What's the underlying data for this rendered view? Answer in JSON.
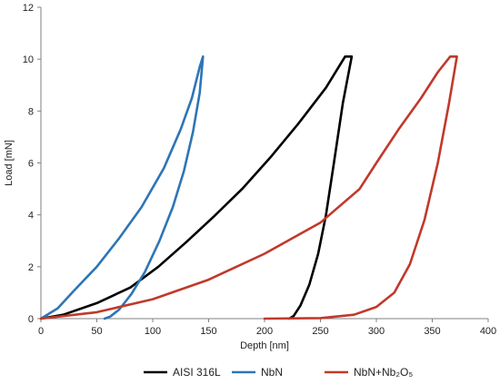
{
  "chart_data": {
    "type": "line",
    "xlabel": "Depth [nm]",
    "ylabel": "Load [mN]",
    "xlim": [
      0,
      400
    ],
    "ylim": [
      0,
      12
    ],
    "x_ticks": [
      "0",
      "50",
      "100",
      "150",
      "200",
      "250",
      "300",
      "350",
      "400"
    ],
    "y_ticks": [
      "0",
      "2",
      "4",
      "6",
      "8",
      "10",
      "12"
    ],
    "grid": false,
    "legend_position": "bottom",
    "series": [
      {
        "name": "AISI 316L",
        "color": "#000000",
        "points": [
          [
            0,
            0
          ],
          [
            20,
            0.15
          ],
          [
            50,
            0.6
          ],
          [
            80,
            1.2
          ],
          [
            105,
            2.0
          ],
          [
            130,
            2.95
          ],
          [
            155,
            3.95
          ],
          [
            180,
            5.0
          ],
          [
            205,
            6.2
          ],
          [
            230,
            7.5
          ],
          [
            255,
            8.9
          ],
          [
            272,
            10.1
          ],
          [
            278,
            10.1
          ],
          [
            270,
            8.3
          ],
          [
            262,
            6.0
          ],
          [
            255,
            4.0
          ],
          [
            248,
            2.5
          ],
          [
            240,
            1.3
          ],
          [
            232,
            0.5
          ],
          [
            226,
            0.1
          ],
          [
            222,
            0
          ]
        ]
      },
      {
        "name": "NbN",
        "color": "#2E75B6",
        "points": [
          [
            0,
            0
          ],
          [
            15,
            0.4
          ],
          [
            30,
            1.1
          ],
          [
            50,
            2.0
          ],
          [
            70,
            3.1
          ],
          [
            90,
            4.3
          ],
          [
            110,
            5.8
          ],
          [
            125,
            7.3
          ],
          [
            135,
            8.5
          ],
          [
            142,
            9.7
          ],
          [
            145,
            10.1
          ],
          [
            142,
            8.7
          ],
          [
            136,
            7.2
          ],
          [
            128,
            5.7
          ],
          [
            118,
            4.3
          ],
          [
            106,
            3.0
          ],
          [
            93,
            1.8
          ],
          [
            81,
            0.95
          ],
          [
            70,
            0.35
          ],
          [
            62,
            0.08
          ],
          [
            57,
            0
          ]
        ]
      },
      {
        "name": "NbN+Nb₂O₅",
        "color": "#C0392B",
        "points": [
          [
            0,
            0
          ],
          [
            50,
            0.25
          ],
          [
            100,
            0.75
          ],
          [
            150,
            1.5
          ],
          [
            200,
            2.5
          ],
          [
            250,
            3.7
          ],
          [
            285,
            5.0
          ],
          [
            300,
            6.0
          ],
          [
            320,
            7.3
          ],
          [
            340,
            8.5
          ],
          [
            355,
            9.5
          ],
          [
            366,
            10.1
          ],
          [
            372,
            10.1
          ],
          [
            365,
            8.3
          ],
          [
            355,
            6.0
          ],
          [
            343,
            3.8
          ],
          [
            330,
            2.1
          ],
          [
            316,
            1.0
          ],
          [
            300,
            0.45
          ],
          [
            280,
            0.15
          ],
          [
            250,
            0.02
          ],
          [
            200,
            0
          ]
        ]
      }
    ]
  }
}
